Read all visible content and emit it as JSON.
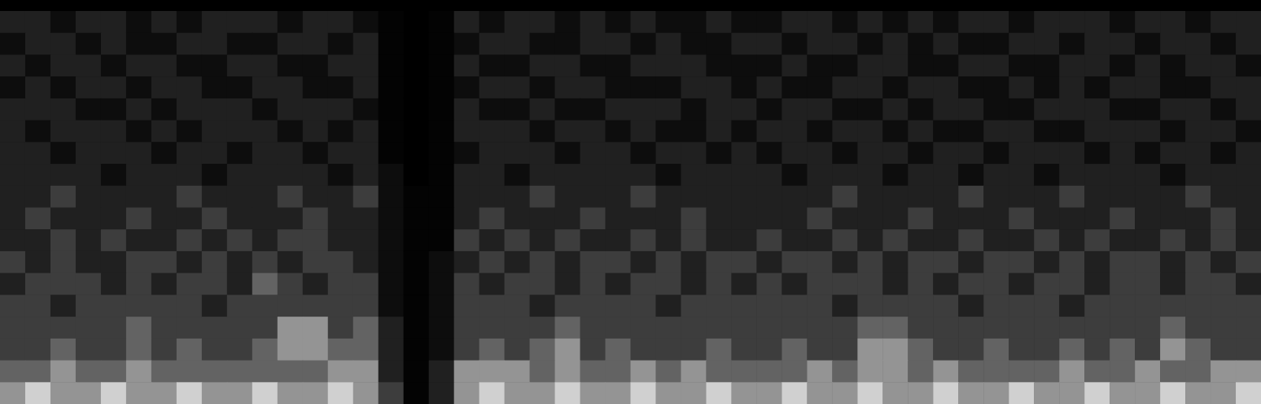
{
  "chart_data": {
    "type": "heatmap",
    "tick_labels": false,
    "cells": [
      [
        3,
        3,
        2,
        3,
        3,
        2,
        3,
        2,
        3,
        3,
        3,
        2,
        3,
        3,
        2,
        1,
        0,
        1,
        3,
        2,
        3,
        3,
        2,
        3,
        2,
        3,
        2,
        2,
        3,
        2,
        2,
        3,
        3,
        2,
        3,
        2,
        3,
        2,
        3,
        3,
        2,
        3,
        3,
        3,
        2,
        3,
        3,
        2,
        3,
        3
      ],
      [
        2,
        3,
        3,
        2,
        3,
        2,
        2,
        3,
        3,
        2,
        2,
        3,
        3,
        2,
        3,
        1,
        0,
        1,
        2,
        3,
        3,
        2,
        2,
        3,
        3,
        2,
        3,
        2,
        2,
        3,
        3,
        2,
        3,
        3,
        2,
        3,
        2,
        3,
        2,
        2,
        3,
        3,
        2,
        3,
        3,
        2,
        3,
        3,
        2,
        3
      ],
      [
        3,
        2,
        3,
        3,
        2,
        3,
        3,
        2,
        2,
        3,
        3,
        2,
        2,
        3,
        3,
        1,
        0,
        1,
        3,
        2,
        2,
        3,
        3,
        2,
        2,
        3,
        3,
        3,
        2,
        2,
        2,
        3,
        2,
        2,
        3,
        3,
        2,
        2,
        3,
        3,
        2,
        2,
        3,
        3,
        2,
        3,
        2,
        3,
        3,
        2
      ],
      [
        2,
        3,
        2,
        3,
        3,
        2,
        3,
        3,
        2,
        2,
        3,
        3,
        2,
        2,
        3,
        1,
        0,
        1,
        2,
        3,
        3,
        2,
        3,
        3,
        2,
        2,
        2,
        3,
        3,
        2,
        3,
        2,
        2,
        3,
        3,
        2,
        3,
        3,
        2,
        2,
        3,
        2,
        3,
        2,
        3,
        3,
        2,
        2,
        3,
        3
      ],
      [
        3,
        3,
        3,
        2,
        2,
        3,
        2,
        3,
        3,
        3,
        2,
        3,
        3,
        3,
        2,
        1,
        0,
        1,
        3,
        2,
        2,
        3,
        2,
        2,
        3,
        3,
        3,
        2,
        3,
        3,
        2,
        3,
        3,
        2,
        2,
        3,
        2,
        3,
        3,
        2,
        2,
        3,
        3,
        3,
        2,
        2,
        3,
        3,
        2,
        3
      ],
      [
        3,
        2,
        3,
        3,
        3,
        2,
        3,
        2,
        3,
        3,
        3,
        2,
        3,
        2,
        3,
        1,
        0,
        1,
        3,
        3,
        3,
        2,
        3,
        3,
        2,
        3,
        2,
        2,
        3,
        2,
        3,
        3,
        2,
        3,
        3,
        2,
        3,
        2,
        2,
        3,
        3,
        2,
        2,
        3,
        3,
        3,
        2,
        3,
        3,
        2
      ],
      [
        3,
        3,
        2,
        3,
        3,
        3,
        2,
        3,
        3,
        2,
        3,
        3,
        2,
        3,
        3,
        1,
        0,
        1,
        2,
        3,
        3,
        3,
        2,
        3,
        3,
        2,
        3,
        3,
        2,
        3,
        2,
        3,
        3,
        2,
        3,
        3,
        2,
        3,
        3,
        2,
        3,
        3,
        3,
        2,
        3,
        2,
        3,
        3,
        2,
        3
      ],
      [
        3,
        3,
        3,
        3,
        2,
        3,
        3,
        3,
        2,
        3,
        3,
        3,
        3,
        2,
        3,
        2,
        0,
        1,
        3,
        3,
        2,
        3,
        3,
        3,
        3,
        3,
        2,
        3,
        3,
        3,
        3,
        2,
        3,
        3,
        3,
        2,
        3,
        3,
        2,
        3,
        3,
        2,
        3,
        3,
        3,
        3,
        2,
        3,
        3,
        3
      ],
      [
        3,
        3,
        4,
        3,
        3,
        3,
        3,
        4,
        3,
        3,
        3,
        4,
        3,
        3,
        4,
        2,
        1,
        1,
        3,
        3,
        3,
        4,
        3,
        3,
        3,
        4,
        3,
        3,
        3,
        3,
        3,
        3,
        3,
        4,
        3,
        3,
        3,
        3,
        4,
        3,
        3,
        3,
        4,
        3,
        3,
        3,
        3,
        4,
        3,
        3
      ],
      [
        3,
        4,
        3,
        3,
        3,
        4,
        3,
        3,
        4,
        3,
        3,
        3,
        4,
        3,
        3,
        2,
        1,
        1,
        3,
        4,
        3,
        3,
        3,
        4,
        3,
        3,
        3,
        4,
        3,
        3,
        3,
        3,
        4,
        3,
        3,
        3,
        4,
        3,
        3,
        3,
        4,
        3,
        3,
        3,
        4,
        3,
        3,
        3,
        4,
        3
      ],
      [
        3,
        3,
        4,
        3,
        4,
        3,
        3,
        4,
        3,
        4,
        3,
        4,
        4,
        3,
        3,
        2,
        1,
        1,
        4,
        3,
        4,
        3,
        4,
        3,
        3,
        4,
        3,
        4,
        3,
        3,
        4,
        3,
        3,
        4,
        3,
        4,
        3,
        3,
        4,
        3,
        3,
        4,
        3,
        4,
        3,
        3,
        4,
        3,
        4,
        3
      ],
      [
        4,
        3,
        4,
        3,
        3,
        4,
        4,
        3,
        4,
        3,
        4,
        3,
        4,
        4,
        3,
        2,
        1,
        2,
        3,
        4,
        3,
        4,
        3,
        4,
        4,
        3,
        4,
        3,
        4,
        4,
        3,
        4,
        4,
        3,
        4,
        3,
        4,
        4,
        3,
        4,
        4,
        3,
        4,
        3,
        4,
        4,
        3,
        4,
        3,
        4
      ],
      [
        3,
        4,
        4,
        4,
        3,
        4,
        3,
        4,
        4,
        3,
        5,
        4,
        3,
        4,
        4,
        2,
        1,
        2,
        4,
        3,
        4,
        4,
        3,
        4,
        3,
        4,
        4,
        3,
        4,
        3,
        4,
        3,
        4,
        4,
        4,
        3,
        4,
        3,
        4,
        4,
        3,
        4,
        4,
        3,
        4,
        4,
        3,
        4,
        4,
        3
      ],
      [
        4,
        4,
        3,
        4,
        4,
        4,
        4,
        4,
        3,
        4,
        4,
        4,
        4,
        4,
        4,
        2,
        1,
        2,
        4,
        4,
        4,
        3,
        4,
        4,
        4,
        4,
        3,
        4,
        4,
        4,
        4,
        4,
        4,
        3,
        4,
        4,
        4,
        4,
        3,
        4,
        4,
        4,
        3,
        4,
        4,
        4,
        4,
        4,
        4,
        4
      ],
      [
        4,
        4,
        4,
        4,
        4,
        5,
        4,
        4,
        4,
        4,
        4,
        6,
        6,
        4,
        5,
        3,
        1,
        2,
        4,
        4,
        4,
        4,
        5,
        4,
        4,
        4,
        4,
        4,
        4,
        4,
        4,
        4,
        4,
        4,
        5,
        5,
        4,
        4,
        4,
        4,
        4,
        4,
        4,
        4,
        4,
        4,
        5,
        4,
        4,
        4
      ],
      [
        4,
        4,
        5,
        4,
        4,
        5,
        4,
        5,
        4,
        4,
        5,
        6,
        6,
        5,
        5,
        3,
        1,
        2,
        4,
        5,
        4,
        5,
        6,
        4,
        5,
        4,
        4,
        4,
        5,
        4,
        4,
        5,
        4,
        4,
        6,
        6,
        5,
        4,
        4,
        5,
        4,
        4,
        5,
        4,
        5,
        4,
        6,
        5,
        4,
        4
      ],
      [
        5,
        5,
        6,
        5,
        5,
        6,
        5,
        5,
        5,
        5,
        5,
        5,
        5,
        6,
        6,
        3,
        1,
        3,
        6,
        6,
        6,
        5,
        6,
        5,
        5,
        6,
        5,
        6,
        5,
        5,
        5,
        5,
        6,
        5,
        6,
        6,
        5,
        6,
        5,
        5,
        5,
        5,
        6,
        5,
        5,
        6,
        5,
        5,
        6,
        6
      ],
      [
        6,
        7,
        6,
        6,
        7,
        6,
        6,
        7,
        6,
        6,
        7,
        6,
        6,
        7,
        6,
        4,
        1,
        3,
        6,
        7,
        6,
        6,
        7,
        6,
        6,
        7,
        6,
        6,
        7,
        6,
        6,
        7,
        6,
        6,
        7,
        6,
        6,
        7,
        6,
        6,
        7,
        6,
        6,
        7,
        6,
        6,
        7,
        6,
        6,
        7
      ]
    ]
  }
}
